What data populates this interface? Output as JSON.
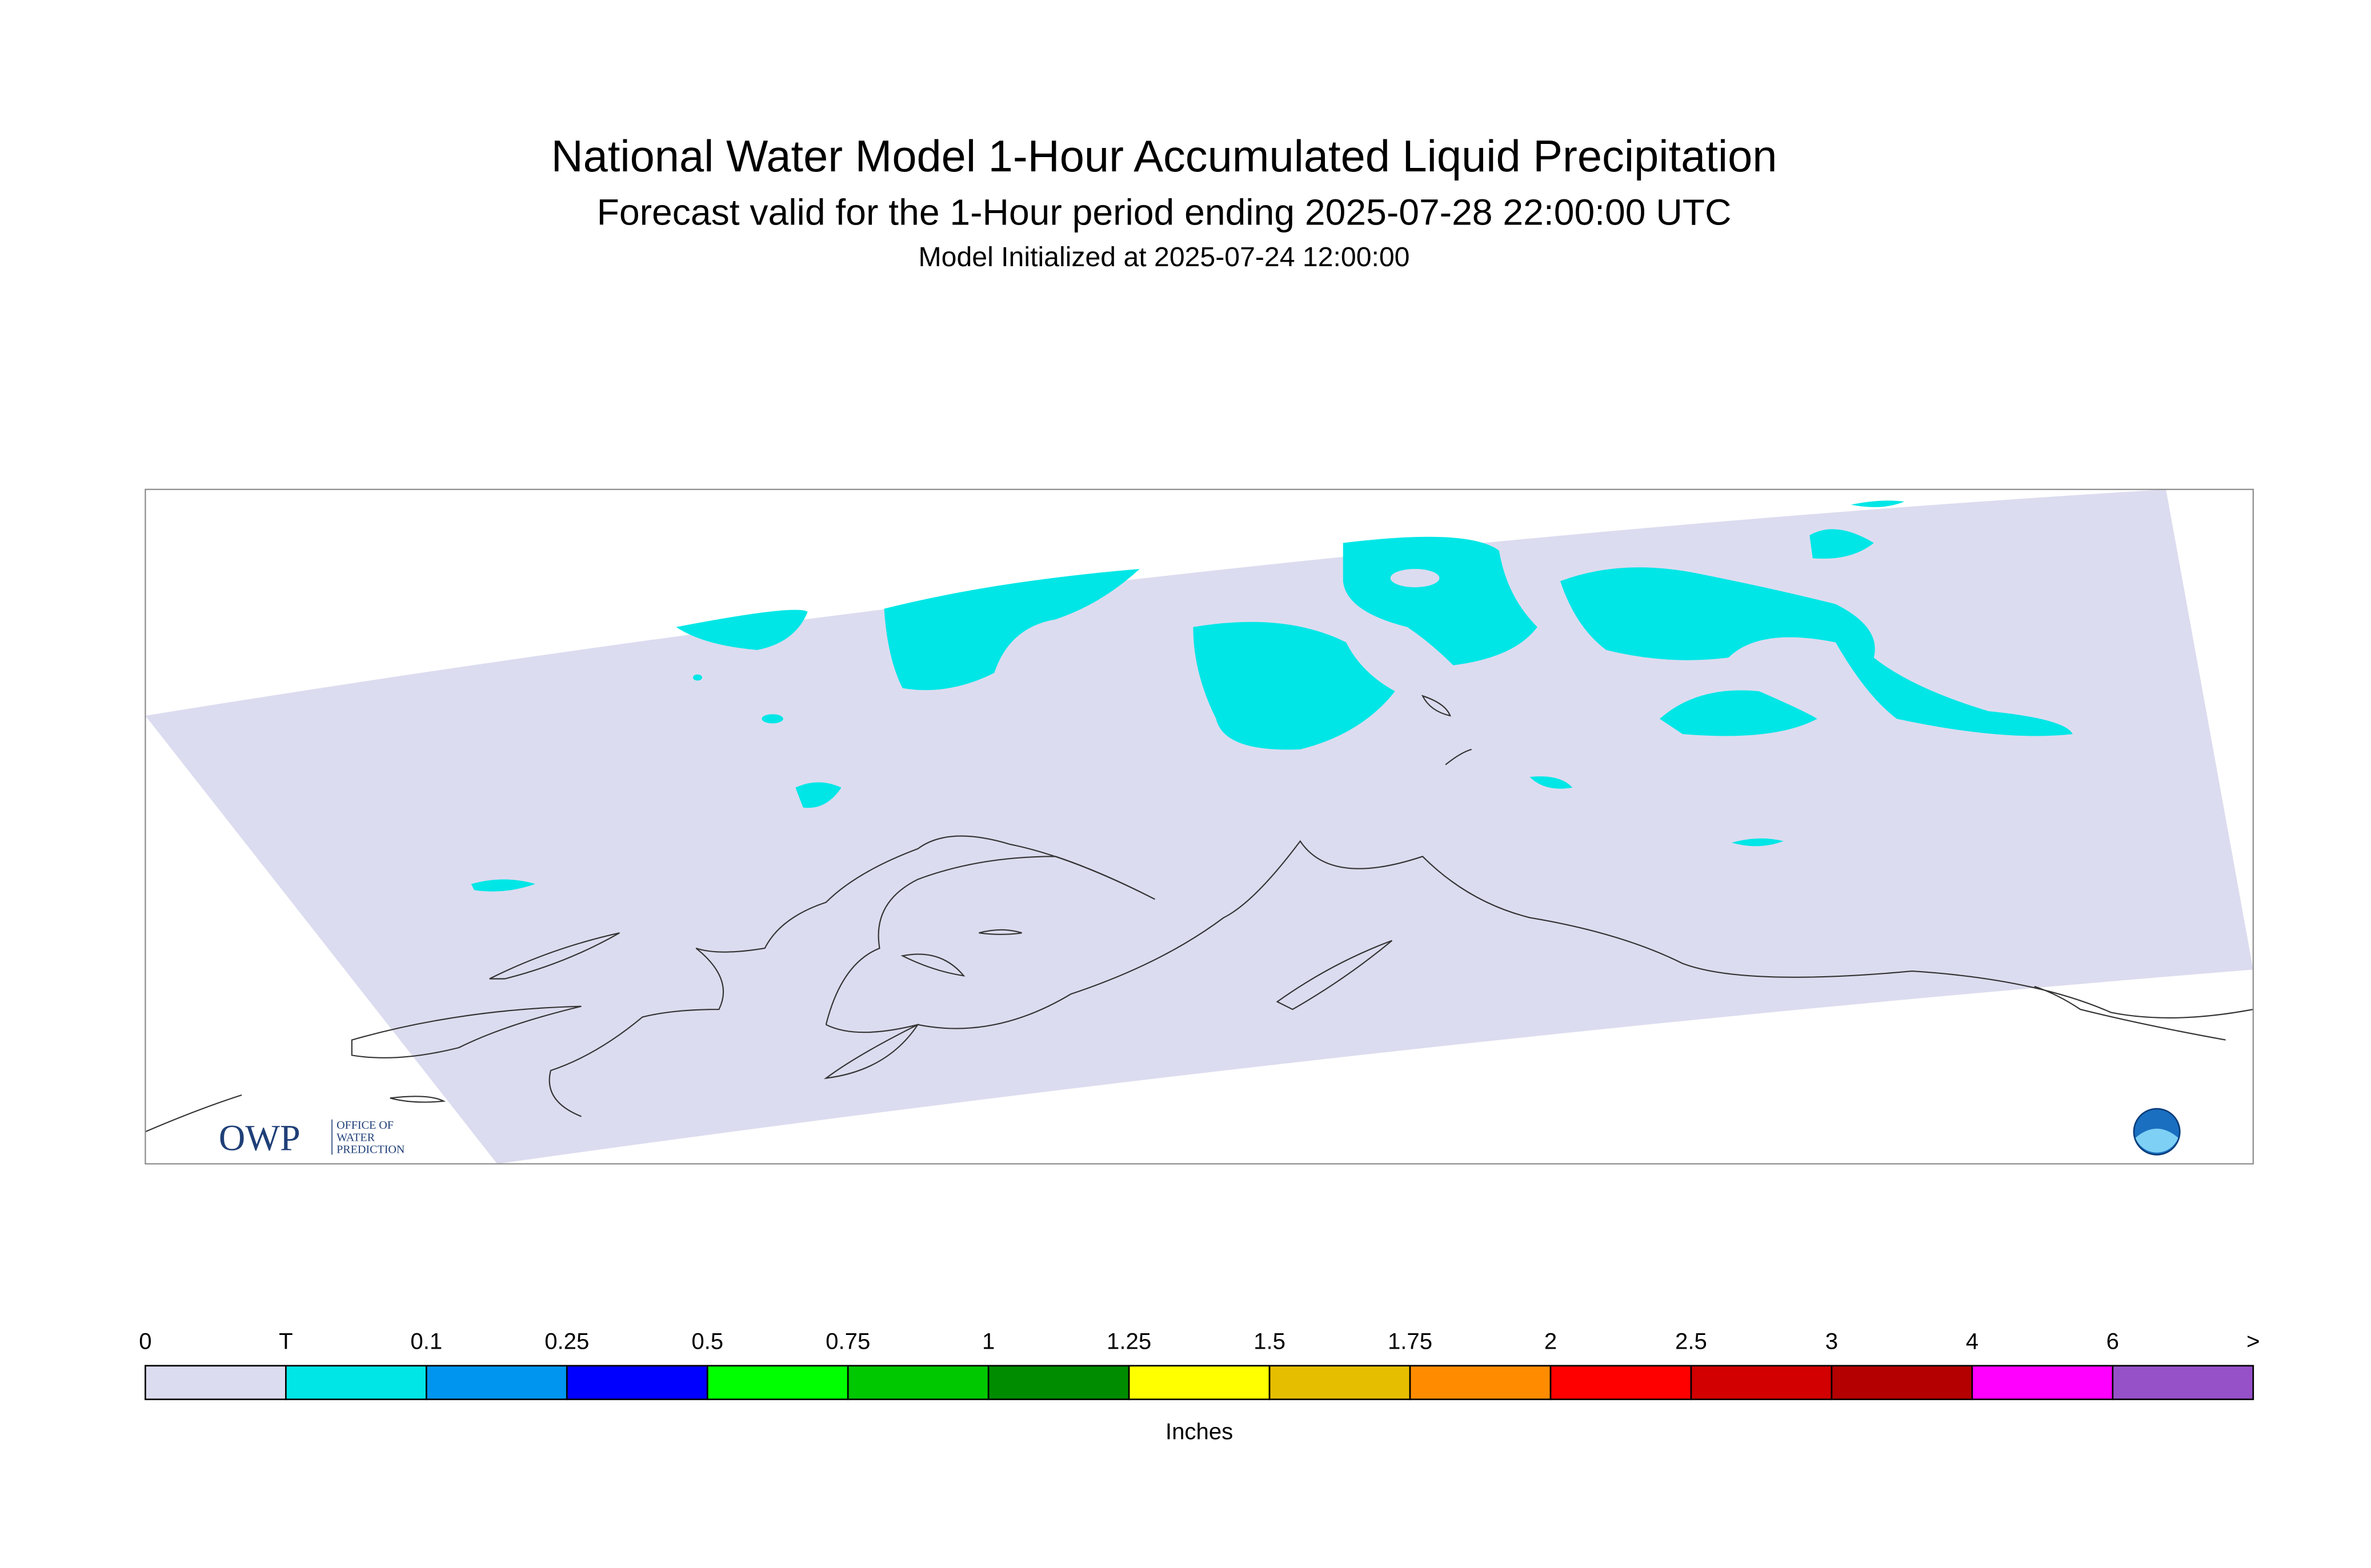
{
  "header": {
    "title": "National Water Model 1-Hour Accumulated Liquid Precipitation",
    "subtitle": "Forecast valid for the 1-Hour period ending 2025-07-28 22:00:00 UTC",
    "initialized": "Model Initialized at 2025-07-24 12:00:00"
  },
  "logo": {
    "text": "OWP",
    "lines": [
      "OFFICE OF",
      "WATER",
      "PREDICTION"
    ]
  },
  "colorbar": {
    "labels": [
      "0",
      "T",
      "0.1",
      "0.25",
      "0.5",
      "0.75",
      "1",
      "1.25",
      "1.5",
      "1.75",
      "2",
      "2.5",
      "3",
      "4",
      "6",
      ">"
    ],
    "colors": [
      "#dcdcf0",
      "#00e6e6",
      "#0096f0",
      "#0000ff",
      "#00ff00",
      "#00c800",
      "#008c00",
      "#ffff00",
      "#e6be00",
      "#ff8c00",
      "#ff0000",
      "#d20000",
      "#b40000",
      "#ff00ff",
      "#9650c8"
    ],
    "units": "Inches"
  }
}
